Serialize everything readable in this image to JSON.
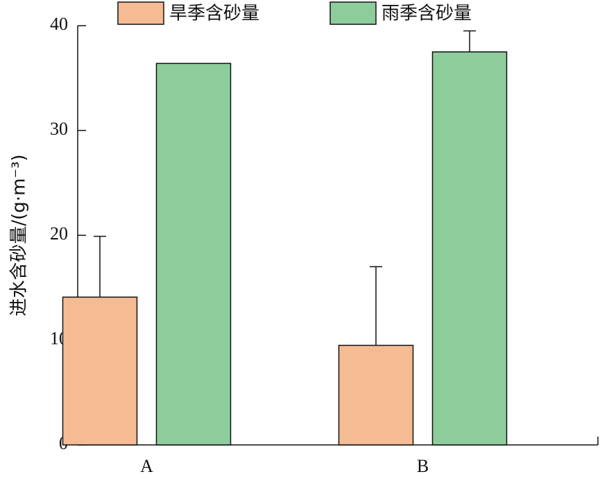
{
  "chart_data": {
    "type": "bar",
    "ylabel": "进水含砂量/(g·m⁻³)",
    "categories": [
      "A",
      "B"
    ],
    "series": [
      {
        "name": "旱季含砂量",
        "color": "#f5bb93",
        "values": [
          14.1,
          9.5
        ],
        "errors": [
          5.8,
          7.5
        ]
      },
      {
        "name": "雨季含砂量",
        "color": "#8dcd9c",
        "values": [
          36.4,
          37.5
        ],
        "errors": [
          null,
          2.0
        ]
      }
    ],
    "ylim": [
      0,
      40
    ],
    "yticks": [
      0,
      10,
      20,
      30,
      40
    ],
    "grid": false,
    "legend": "top"
  }
}
